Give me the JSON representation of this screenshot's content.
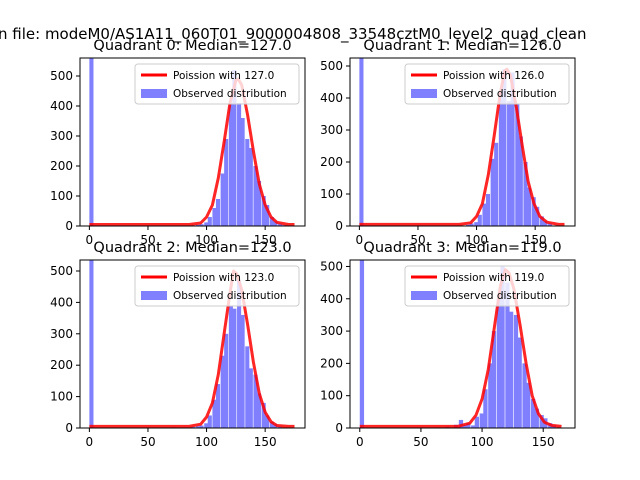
{
  "figure": {
    "suptitle": "n file: modeM0/AS1A11_060T01_9000004808_33548cztM0_level2_quad_clean"
  },
  "colors": {
    "hist": "#8080ff",
    "fit": "#ff0000",
    "axis": "#000000",
    "legend_border": "#cccccc"
  },
  "chart_data": [
    {
      "type": "bar",
      "title": "Quadrant 0: Median=127.0",
      "xlim": [
        -8,
        184
      ],
      "ylim": [
        0,
        560
      ],
      "xticks": [
        0,
        50,
        100,
        150
      ],
      "yticks": [
        0,
        100,
        200,
        300,
        400,
        500
      ],
      "xticklabels": [
        "0",
        "50",
        "100",
        "150"
      ],
      "yticklabels": [
        "0",
        "100",
        "200",
        "300",
        "400",
        "500"
      ],
      "legend": {
        "position": "top-right",
        "line_label": "Poission with 127.0",
        "bar_label": "Observed distribution"
      },
      "poisson_mean": 127.0,
      "peak_height": 490,
      "bin_width": 3.5,
      "bins": [
        [
          0,
          560
        ],
        [
          87,
          2
        ],
        [
          91,
          4
        ],
        [
          94,
          6
        ],
        [
          98,
          12
        ],
        [
          101,
          30
        ],
        [
          105,
          60
        ],
        [
          108,
          90
        ],
        [
          112,
          175
        ],
        [
          115,
          290
        ],
        [
          119,
          410
        ],
        [
          122,
          520
        ],
        [
          126,
          410
        ],
        [
          129,
          360
        ],
        [
          133,
          290
        ],
        [
          136,
          260
        ],
        [
          140,
          200
        ],
        [
          143,
          150
        ],
        [
          147,
          100
        ],
        [
          150,
          70
        ],
        [
          154,
          30
        ],
        [
          157,
          15
        ],
        [
          161,
          8
        ],
        [
          164,
          3
        ]
      ],
      "fit": [
        [
          0,
          5
        ],
        [
          85,
          5
        ],
        [
          95,
          10
        ],
        [
          100,
          30
        ],
        [
          105,
          70
        ],
        [
          110,
          160
        ],
        [
          115,
          280
        ],
        [
          120,
          410
        ],
        [
          125,
          485
        ],
        [
          127,
          490
        ],
        [
          130,
          470
        ],
        [
          135,
          370
        ],
        [
          140,
          250
        ],
        [
          145,
          140
        ],
        [
          150,
          70
        ],
        [
          155,
          30
        ],
        [
          160,
          12
        ],
        [
          170,
          5
        ],
        [
          175,
          5
        ]
      ]
    },
    {
      "type": "bar",
      "title": "Quadrant 1: Median=126.0",
      "xlim": [
        -8,
        184
      ],
      "ylim": [
        0,
        525
      ],
      "xticks": [
        0,
        50,
        100,
        150
      ],
      "yticks": [
        0,
        100,
        200,
        300,
        400,
        500
      ],
      "xticklabels": [
        "0",
        "50",
        "100",
        "150"
      ],
      "yticklabels": [
        "0",
        "100",
        "200",
        "300",
        "400",
        "500"
      ],
      "legend": {
        "position": "top-right",
        "line_label": "Poission with 126.0",
        "bar_label": "Observed distribution"
      },
      "poisson_mean": 126.0,
      "peak_height": 490,
      "bin_width": 3.5,
      "bins": [
        [
          0,
          525
        ],
        [
          91,
          4
        ],
        [
          94,
          8
        ],
        [
          98,
          12
        ],
        [
          101,
          35
        ],
        [
          105,
          70
        ],
        [
          108,
          100
        ],
        [
          112,
          210
        ],
        [
          115,
          260
        ],
        [
          119,
          420
        ],
        [
          122,
          490
        ],
        [
          126,
          390
        ],
        [
          129,
          480
        ],
        [
          133,
          380
        ],
        [
          136,
          280
        ],
        [
          140,
          200
        ],
        [
          143,
          120
        ],
        [
          147,
          90
        ],
        [
          150,
          60
        ],
        [
          154,
          30
        ],
        [
          157,
          15
        ],
        [
          161,
          8
        ]
      ],
      "fit": [
        [
          0,
          5
        ],
        [
          85,
          5
        ],
        [
          95,
          10
        ],
        [
          100,
          30
        ],
        [
          105,
          70
        ],
        [
          110,
          160
        ],
        [
          115,
          280
        ],
        [
          120,
          410
        ],
        [
          124,
          485
        ],
        [
          126,
          490
        ],
        [
          129,
          470
        ],
        [
          134,
          370
        ],
        [
          139,
          250
        ],
        [
          144,
          140
        ],
        [
          149,
          70
        ],
        [
          154,
          30
        ],
        [
          160,
          12
        ],
        [
          170,
          5
        ],
        [
          175,
          5
        ]
      ]
    },
    {
      "type": "bar",
      "title": "Quadrant 2: Median=123.0",
      "xlim": [
        -8,
        184
      ],
      "ylim": [
        0,
        535
      ],
      "xticks": [
        0,
        50,
        100,
        150
      ],
      "yticks": [
        0,
        100,
        200,
        300,
        400,
        500
      ],
      "xticklabels": [
        "0",
        "50",
        "100",
        "150"
      ],
      "yticklabels": [
        "0",
        "100",
        "200",
        "300",
        "400",
        "500"
      ],
      "legend": {
        "position": "top-right",
        "line_label": "Poission with 123.0",
        "bar_label": "Observed distribution"
      },
      "poisson_mean": 123.0,
      "peak_height": 500,
      "bin_width": 3.5,
      "bins": [
        [
          0,
          535
        ],
        [
          70,
          2
        ],
        [
          87,
          4
        ],
        [
          91,
          6
        ],
        [
          94,
          8
        ],
        [
          98,
          15
        ],
        [
          101,
          40
        ],
        [
          105,
          90
        ],
        [
          108,
          140
        ],
        [
          112,
          230
        ],
        [
          115,
          300
        ],
        [
          119,
          390
        ],
        [
          122,
          380
        ],
        [
          126,
          470
        ],
        [
          129,
          360
        ],
        [
          133,
          260
        ],
        [
          136,
          190
        ],
        [
          140,
          170
        ],
        [
          143,
          110
        ],
        [
          147,
          80
        ],
        [
          150,
          40
        ],
        [
          154,
          20
        ],
        [
          157,
          12
        ],
        [
          161,
          5
        ],
        [
          168,
          2
        ]
      ],
      "fit": [
        [
          0,
          5
        ],
        [
          85,
          5
        ],
        [
          95,
          12
        ],
        [
          100,
          35
        ],
        [
          105,
          80
        ],
        [
          110,
          170
        ],
        [
          115,
          300
        ],
        [
          120,
          430
        ],
        [
          123,
          500
        ],
        [
          126,
          490
        ],
        [
          130,
          440
        ],
        [
          135,
          330
        ],
        [
          140,
          210
        ],
        [
          145,
          110
        ],
        [
          150,
          50
        ],
        [
          155,
          20
        ],
        [
          160,
          8
        ],
        [
          170,
          5
        ],
        [
          175,
          5
        ]
      ]
    },
    {
      "type": "bar",
      "title": "Quadrant 3: Median=119.0",
      "xlim": [
        -8,
        176
      ],
      "ylim": [
        0,
        520
      ],
      "xticks": [
        0,
        50,
        100,
        150
      ],
      "yticks": [
        0,
        100,
        200,
        300,
        400,
        500
      ],
      "xticklabels": [
        "0",
        "50",
        "100",
        "150"
      ],
      "yticklabels": [
        "0",
        "100",
        "200",
        "300",
        "400",
        "500"
      ],
      "legend": {
        "position": "top-right",
        "line_label": "Poission with 119.0",
        "bar_label": "Observed distribution"
      },
      "poisson_mean": 119.0,
      "peak_height": 490,
      "bin_width": 3.5,
      "bins": [
        [
          0,
          520
        ],
        [
          63,
          2
        ],
        [
          70,
          4
        ],
        [
          77,
          10
        ],
        [
          81,
          25
        ],
        [
          84,
          10
        ],
        [
          87,
          15
        ],
        [
          91,
          8
        ],
        [
          94,
          35
        ],
        [
          98,
          45
        ],
        [
          101,
          120
        ],
        [
          105,
          200
        ],
        [
          108,
          300
        ],
        [
          112,
          400
        ],
        [
          115,
          500
        ],
        [
          119,
          450
        ],
        [
          122,
          360
        ],
        [
          126,
          350
        ],
        [
          129,
          280
        ],
        [
          133,
          200
        ],
        [
          136,
          140
        ],
        [
          140,
          90
        ],
        [
          143,
          60
        ],
        [
          147,
          40
        ],
        [
          150,
          30
        ],
        [
          154,
          15
        ],
        [
          157,
          8
        ]
      ],
      "fit": [
        [
          0,
          5
        ],
        [
          80,
          5
        ],
        [
          90,
          15
        ],
        [
          95,
          40
        ],
        [
          100,
          90
        ],
        [
          105,
          180
        ],
        [
          110,
          310
        ],
        [
          115,
          440
        ],
        [
          119,
          490
        ],
        [
          122,
          480
        ],
        [
          126,
          430
        ],
        [
          131,
          320
        ],
        [
          136,
          200
        ],
        [
          141,
          100
        ],
        [
          146,
          45
        ],
        [
          151,
          18
        ],
        [
          157,
          8
        ],
        [
          165,
          5
        ]
      ]
    }
  ]
}
